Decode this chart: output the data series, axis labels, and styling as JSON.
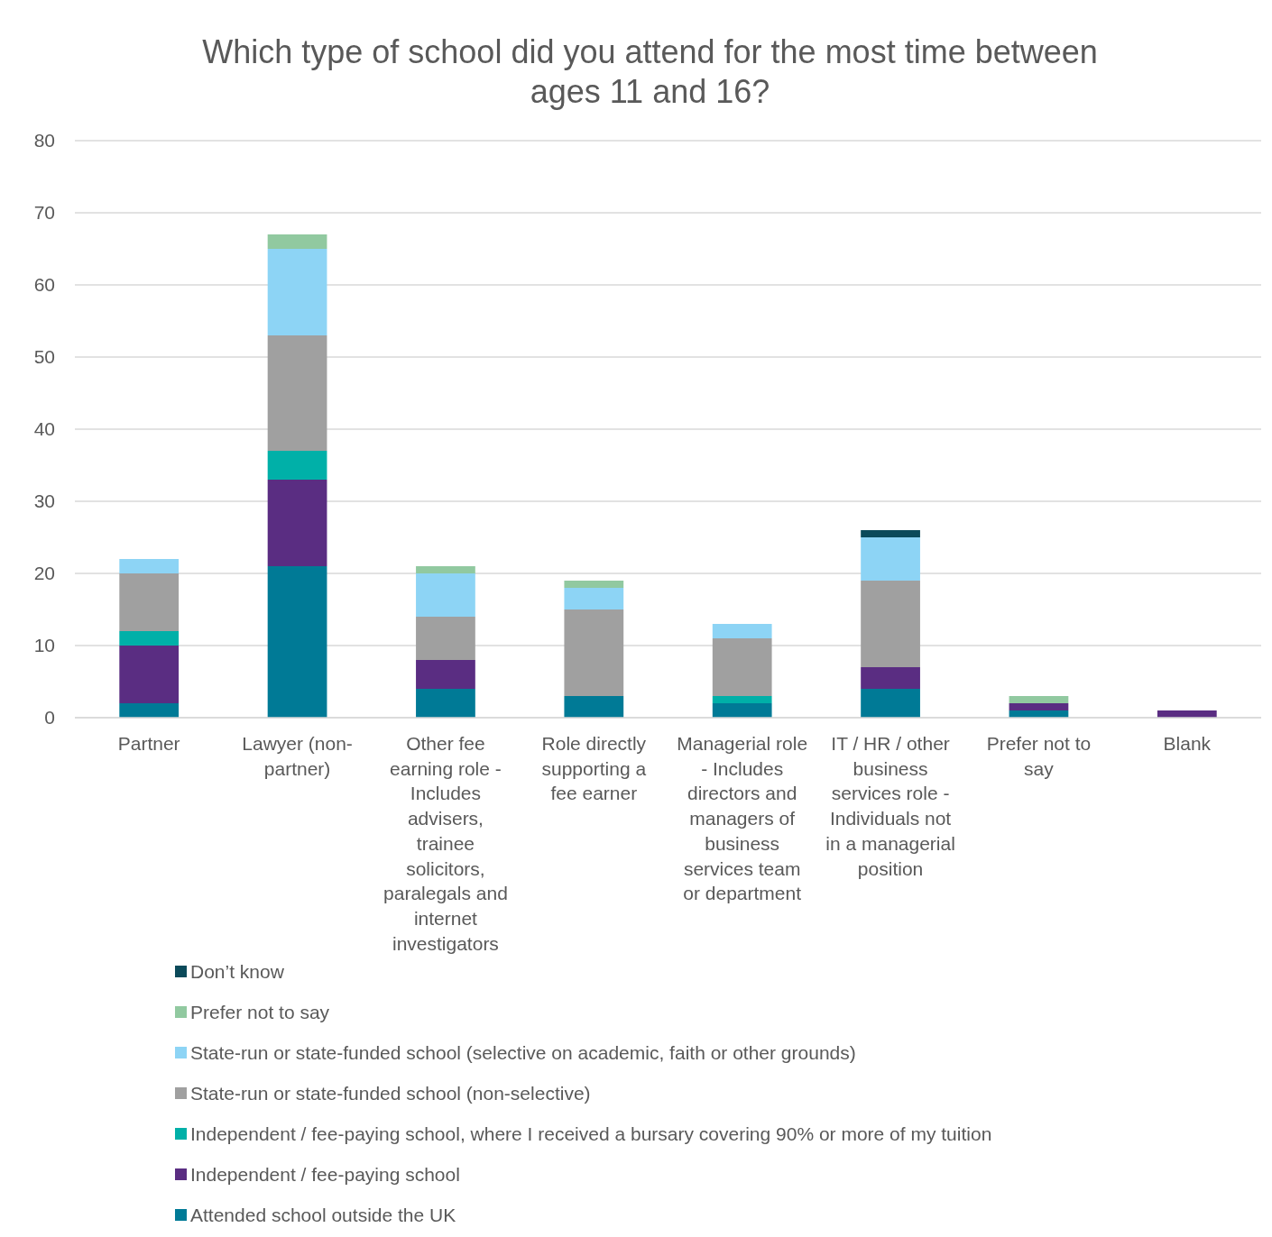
{
  "chart_data": {
    "type": "bar",
    "stacked": true,
    "title": "Which type of school did you attend for the most time between ages 11 and 16?",
    "categories": [
      "Partner",
      "Lawyer (non-partner)",
      "Other fee earning role - Includes advisers, trainee solicitors, paralegals and internet investigators",
      "Role directly supporting a fee earner",
      "Managerial role - Includes directors and managers of business services team or department",
      "IT / HR / other business services role - Individuals not in a managerial position",
      "Prefer not to say",
      "Blank"
    ],
    "series": [
      {
        "name": "Attended school outside the UK",
        "color": "#007a96",
        "values": [
          2,
          21,
          4,
          3,
          2,
          4,
          1,
          0
        ]
      },
      {
        "name": "Independent / fee-paying school",
        "color": "#5a2d82",
        "values": [
          8,
          12,
          4,
          0,
          0,
          3,
          1,
          1
        ]
      },
      {
        "name": "Independent / fee-paying school, where I received a bursary covering 90% or more of my tuition",
        "color": "#00b0a8",
        "values": [
          2,
          4,
          0,
          0,
          1,
          0,
          0,
          0
        ]
      },
      {
        "name": "State-run or state-funded school (non-selective)",
        "color": "#a0a0a0",
        "values": [
          8,
          16,
          6,
          12,
          8,
          12,
          0,
          0
        ]
      },
      {
        "name": "State-run or state-funded school (selective on academic, faith or other grounds)",
        "color": "#8dd4f5",
        "values": [
          2,
          12,
          6,
          3,
          2,
          6,
          0,
          0
        ]
      },
      {
        "name": "Prefer not to say",
        "color": "#91c9a0",
        "values": [
          0,
          2,
          1,
          1,
          0,
          0,
          1,
          0
        ]
      },
      {
        "name": "Don’t know",
        "color": "#0b4a5a",
        "values": [
          0,
          0,
          0,
          0,
          0,
          1,
          0,
          0
        ]
      }
    ],
    "ylim": [
      0,
      80
    ],
    "yticks": [
      0,
      10,
      20,
      30,
      40,
      50,
      60,
      70,
      80
    ],
    "grid": "y",
    "legend": "bottom"
  }
}
